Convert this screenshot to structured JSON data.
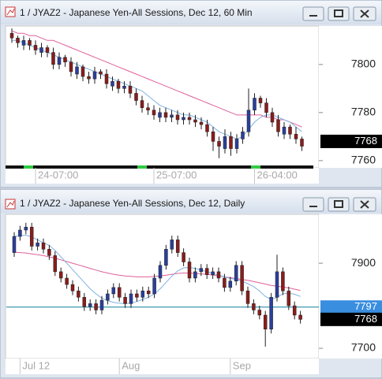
{
  "chart_data": [
    {
      "type": "candlestick",
      "title": "1 / JYAZ2 - Japanese Yen-All Sessions, Dec 12, 60 Min",
      "categories": [
        null,
        null,
        null,
        null,
        "24-07:00",
        null,
        null,
        null,
        null,
        null,
        null,
        null,
        null,
        null,
        null,
        null,
        null,
        null,
        null,
        null,
        null,
        null,
        null,
        null,
        "25-07:00",
        null,
        null,
        null,
        null,
        null,
        null,
        null,
        null,
        null,
        null,
        null,
        null,
        null,
        null,
        null,
        null,
        "26-04:00",
        null,
        null,
        null,
        null,
        null,
        null,
        null,
        null
      ],
      "open": [
        7813,
        7811,
        7808,
        7810,
        7808,
        7805,
        7807,
        7805,
        7800,
        7803,
        7801,
        7796,
        7799,
        7795,
        7794,
        7797,
        7796,
        7791,
        7793,
        7790,
        7791,
        7788,
        7785,
        7782,
        7781,
        7778,
        7780,
        7778,
        7779,
        7777,
        7778,
        7777,
        7776,
        7775,
        7772,
        7768,
        7765,
        7770,
        7765,
        7769,
        7772,
        7781,
        7786,
        7784,
        7780,
        7777,
        7771,
        7774,
        7771,
        7769
      ],
      "high": [
        7815,
        7812,
        7812,
        7811,
        7810,
        7809,
        7808,
        7807,
        7805,
        7804,
        7803,
        7801,
        7800,
        7797,
        7799,
        7798,
        7798,
        7795,
        7794,
        7793,
        7793,
        7790,
        7787,
        7784,
        7783,
        7782,
        7782,
        7781,
        7781,
        7780,
        7780,
        7779,
        7778,
        7777,
        7774,
        7770,
        7773,
        7772,
        7771,
        7774,
        7790,
        7788,
        7787,
        7786,
        7782,
        7779,
        7776,
        7775,
        7774,
        7770
      ],
      "low": [
        7809,
        7807,
        7806,
        7806,
        7804,
        7803,
        7803,
        7798,
        7798,
        7799,
        7795,
        7794,
        7793,
        7792,
        7792,
        7794,
        7790,
        7789,
        7788,
        7788,
        7786,
        7783,
        7780,
        7779,
        7777,
        7776,
        7776,
        7776,
        7775,
        7775,
        7775,
        7774,
        7773,
        7770,
        7764,
        7761,
        7763,
        7762,
        7763,
        7767,
        7770,
        7779,
        7782,
        7778,
        7774,
        7770,
        7769,
        7769,
        7767,
        7764
      ],
      "close": [
        7811,
        7809,
        7810,
        7808,
        7806,
        7807,
        7805,
        7800,
        7803,
        7801,
        7797,
        7799,
        7795,
        7794,
        7797,
        7796,
        7792,
        7793,
        7790,
        7791,
        7788,
        7785,
        7782,
        7781,
        7779,
        7780,
        7778,
        7779,
        7777,
        7778,
        7777,
        7776,
        7775,
        7772,
        7768,
        7766,
        7770,
        7765,
        7769,
        7772,
        7781,
        7786,
        7784,
        7780,
        7776,
        7772,
        7774,
        7771,
        7769,
        7766
      ],
      "up_color": "#2a3f9c",
      "down_color": "#8a1c1c",
      "series": [
        {
          "color": "#e0609a",
          "values": [
            7814,
            7813,
            7813,
            7812,
            7812,
            7811,
            7810,
            7810,
            7809,
            7808,
            7807,
            7806,
            7805,
            7804,
            7803,
            7802,
            7801,
            7800,
            7799,
            7798,
            7797,
            7796,
            7795,
            7794,
            7793,
            7792,
            7791,
            7790,
            7789,
            7788,
            7787,
            7786,
            7785,
            7784,
            7783,
            7782,
            7781,
            7780,
            7779,
            7779,
            7779,
            7779,
            7779,
            7778,
            7778,
            7777,
            7777,
            7776,
            7775,
            7774
          ]
        },
        {
          "color": "#7fb2e0",
          "values": [
            7810,
            7810,
            7809,
            7808,
            7807,
            7806,
            7805,
            7804,
            7803,
            7802,
            7801,
            7800,
            7799,
            7798,
            7797,
            7796,
            7795,
            7794,
            7793,
            7792,
            7791,
            7790,
            7789,
            7787,
            7785,
            7783,
            7782,
            7781,
            7780,
            7779,
            7779,
            7778,
            7777,
            7776,
            7774,
            7772,
            7771,
            7770,
            7769,
            7770,
            7773,
            7776,
            7778,
            7779,
            7779,
            7778,
            7777,
            7776,
            7774,
            7772
          ]
        }
      ],
      "ylim": [
        7757,
        7816
      ],
      "yticks": [
        7760,
        7780,
        7800
      ],
      "last_price": 7768
    },
    {
      "type": "candlestick",
      "title": "1 / JYAZ2 - Japanese Yen-All Sessions, Dec 12, Daily",
      "categories": [
        null,
        "Jul 12",
        null,
        null,
        null,
        null,
        null,
        null,
        null,
        null,
        null,
        null,
        null,
        null,
        null,
        null,
        null,
        null,
        "Aug",
        null,
        null,
        null,
        null,
        null,
        null,
        null,
        null,
        null,
        null,
        null,
        null,
        null,
        null,
        null,
        null,
        null,
        null,
        "Sep",
        null,
        null,
        null,
        null,
        null,
        null,
        null,
        null,
        null,
        null,
        null,
        null
      ],
      "open": [
        7925,
        7963,
        7978,
        7985,
        7940,
        7948,
        7933,
        7918,
        7880,
        7865,
        7850,
        7835,
        7820,
        7798,
        7805,
        7790,
        7813,
        7828,
        7843,
        7820,
        7805,
        7828,
        7820,
        7835,
        7828,
        7865,
        7895,
        7933,
        7955,
        7925,
        7903,
        7865,
        7880,
        7888,
        7873,
        7880,
        7865,
        7843,
        7858,
        7895,
        7835,
        7805,
        7790,
        7778,
        7745,
        7820,
        7880,
        7835,
        7800,
        7778
      ],
      "high": [
        7973,
        7988,
        7995,
        7995,
        7958,
        7958,
        7943,
        7928,
        7890,
        7875,
        7860,
        7845,
        7830,
        7815,
        7815,
        7823,
        7838,
        7853,
        7853,
        7830,
        7838,
        7838,
        7845,
        7845,
        7875,
        7905,
        7943,
        7965,
        7965,
        7935,
        7913,
        7890,
        7898,
        7898,
        7890,
        7890,
        7875,
        7868,
        7905,
        7905,
        7845,
        7815,
        7800,
        7788,
        7830,
        7920,
        7890,
        7845,
        7810,
        7788
      ],
      "low": [
        7915,
        7953,
        7968,
        7930,
        7930,
        7923,
        7908,
        7870,
        7855,
        7840,
        7825,
        7810,
        7788,
        7788,
        7780,
        7780,
        7803,
        7818,
        7810,
        7795,
        7795,
        7810,
        7810,
        7818,
        7818,
        7855,
        7885,
        7923,
        7915,
        7893,
        7855,
        7855,
        7870,
        7863,
        7863,
        7855,
        7833,
        7833,
        7848,
        7825,
        7795,
        7780,
        7768,
        7704,
        7735,
        7810,
        7825,
        7790,
        7768,
        7758
      ],
      "close": [
        7963,
        7978,
        7985,
        7940,
        7948,
        7933,
        7918,
        7880,
        7865,
        7850,
        7835,
        7820,
        7798,
        7805,
        7790,
        7813,
        7828,
        7843,
        7820,
        7805,
        7828,
        7820,
        7835,
        7828,
        7865,
        7895,
        7933,
        7955,
        7925,
        7903,
        7865,
        7880,
        7888,
        7873,
        7880,
        7865,
        7843,
        7858,
        7895,
        7835,
        7805,
        7790,
        7778,
        7745,
        7820,
        7880,
        7835,
        7800,
        7778,
        7768
      ],
      "up_color": "#2a3f9c",
      "down_color": "#8a1c1c",
      "series": [
        {
          "color": "#e0609a",
          "values": [
            7926,
            7925,
            7924,
            7922,
            7920,
            7918,
            7915,
            7912,
            7908,
            7904,
            7900,
            7896,
            7892,
            7888,
            7884,
            7880,
            7877,
            7874,
            7872,
            7870,
            7869,
            7868,
            7868,
            7868,
            7869,
            7870,
            7872,
            7874,
            7876,
            7877,
            7877,
            7876,
            7875,
            7874,
            7872,
            7870,
            7868,
            7866,
            7864,
            7862,
            7860,
            7857,
            7854,
            7851,
            7848,
            7846,
            7844,
            7842,
            7839,
            7836
          ]
        },
        {
          "color": "#7fb2e0",
          "values": [
            7963,
            7965,
            7966,
            7962,
            7955,
            7948,
            7942,
            7930,
            7915,
            7900,
            7885,
            7870,
            7855,
            7840,
            7828,
            7818,
            7812,
            7808,
            7806,
            7805,
            7806,
            7810,
            7815,
            7820,
            7828,
            7840,
            7855,
            7870,
            7882,
            7889,
            7890,
            7888,
            7884,
            7880,
            7876,
            7872,
            7868,
            7864,
            7862,
            7858,
            7852,
            7845,
            7835,
            7822,
            7815,
            7820,
            7828,
            7830,
            7827,
            7822
          ]
        }
      ],
      "ylim": [
        7676,
        8015
      ],
      "yticks": [
        7700,
        7900
      ],
      "level": 7797,
      "level_color": "#2a8fa8",
      "level_box_color": "#3a8ee0",
      "last_price": 7768
    }
  ]
}
